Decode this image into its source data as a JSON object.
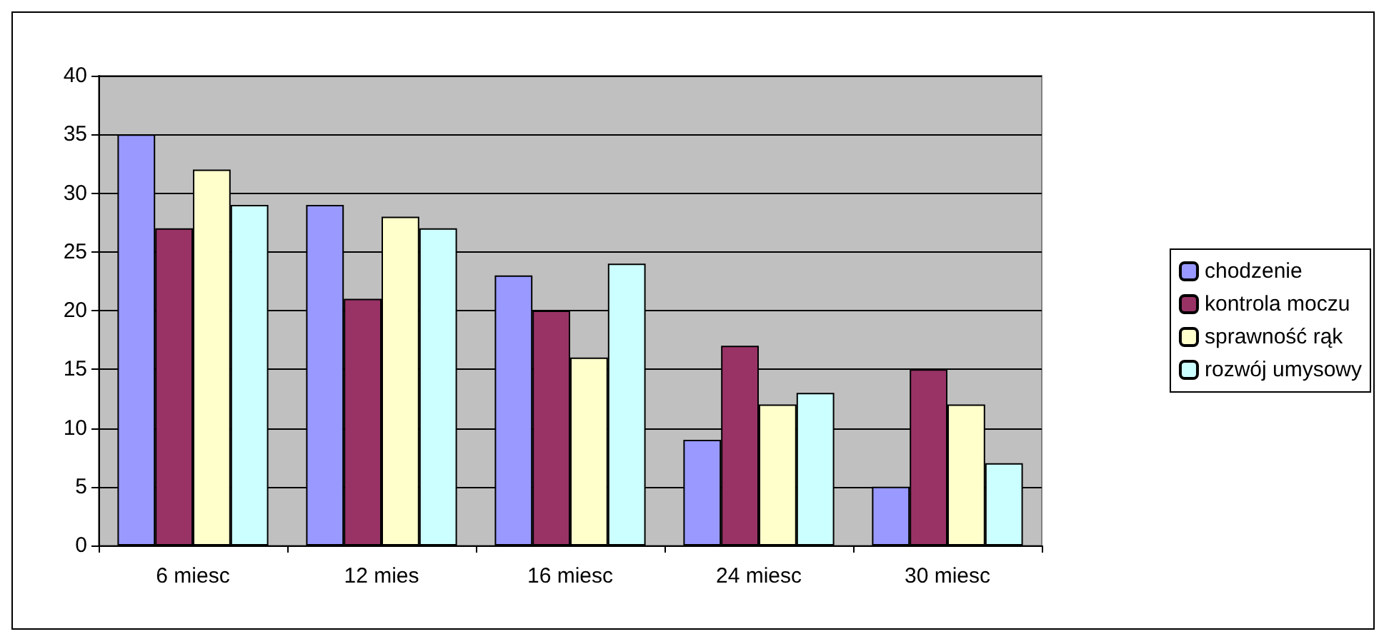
{
  "chart_data": {
    "type": "bar",
    "categories": [
      "6 miesc",
      "12 mies",
      "16 miesc",
      "24 miesc",
      "30 miesc"
    ],
    "series": [
      {
        "name": "chodzenie",
        "color": "#9999ff",
        "values": [
          35,
          29,
          23,
          9,
          5
        ]
      },
      {
        "name": "kontrola moczu",
        "color": "#993366",
        "values": [
          27,
          21,
          20,
          17,
          15
        ]
      },
      {
        "name": "sprawność rąk",
        "color": "#ffffcc",
        "values": [
          32,
          28,
          16,
          12,
          12
        ]
      },
      {
        "name": "rozwój umysowy",
        "color": "#ccffff",
        "values": [
          29,
          27,
          24,
          13,
          7
        ]
      }
    ],
    "ylim": [
      0,
      40
    ],
    "yticks": [
      0,
      5,
      10,
      15,
      20,
      25,
      30,
      35,
      40
    ],
    "grid": "y",
    "legend": "right"
  }
}
